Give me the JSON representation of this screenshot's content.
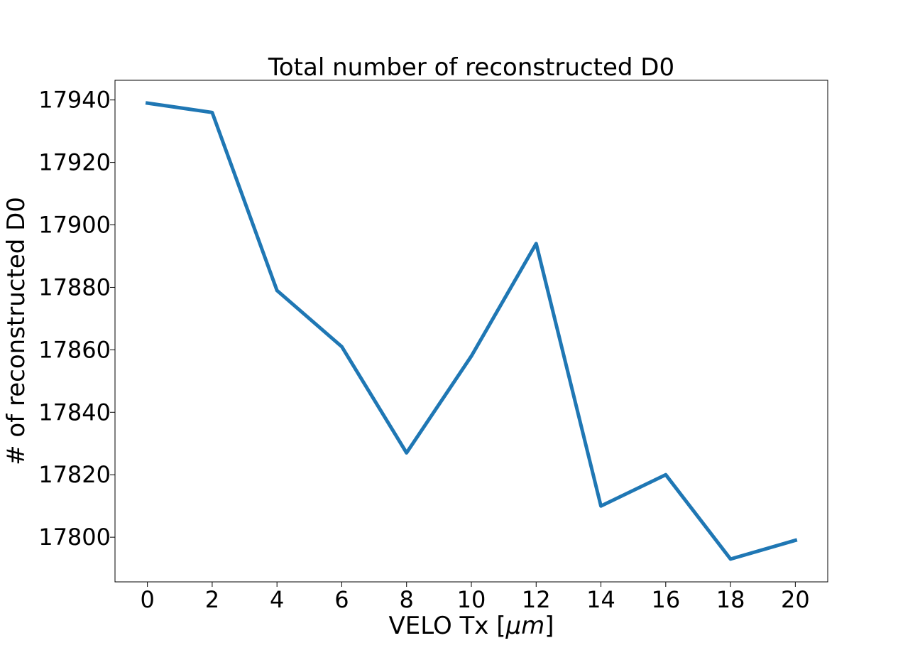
{
  "chart_data": {
    "type": "line",
    "title": "Total number of reconstructed D0",
    "xlabel_prefix": "VELO Tx [",
    "xlabel_unit": "μm",
    "xlabel_suffix": "]",
    "ylabel": "# of reconstructed D0",
    "x": [
      0,
      2,
      4,
      6,
      8,
      10,
      12,
      14,
      16,
      18,
      20
    ],
    "series": [
      {
        "values": [
          17939,
          17936,
          17879,
          17861,
          17827,
          17858,
          17894,
          17810,
          17820,
          17793,
          17799
        ],
        "color": "#1f77b4"
      }
    ],
    "xticks": [
      0,
      2,
      4,
      6,
      8,
      10,
      12,
      14,
      16,
      18,
      20
    ],
    "yticks": [
      17800,
      17820,
      17840,
      17860,
      17880,
      17900,
      17920,
      17940
    ],
    "xlim": [
      -1,
      21
    ],
    "ylim": [
      17785.7,
      17946.3
    ],
    "grid": false
  }
}
